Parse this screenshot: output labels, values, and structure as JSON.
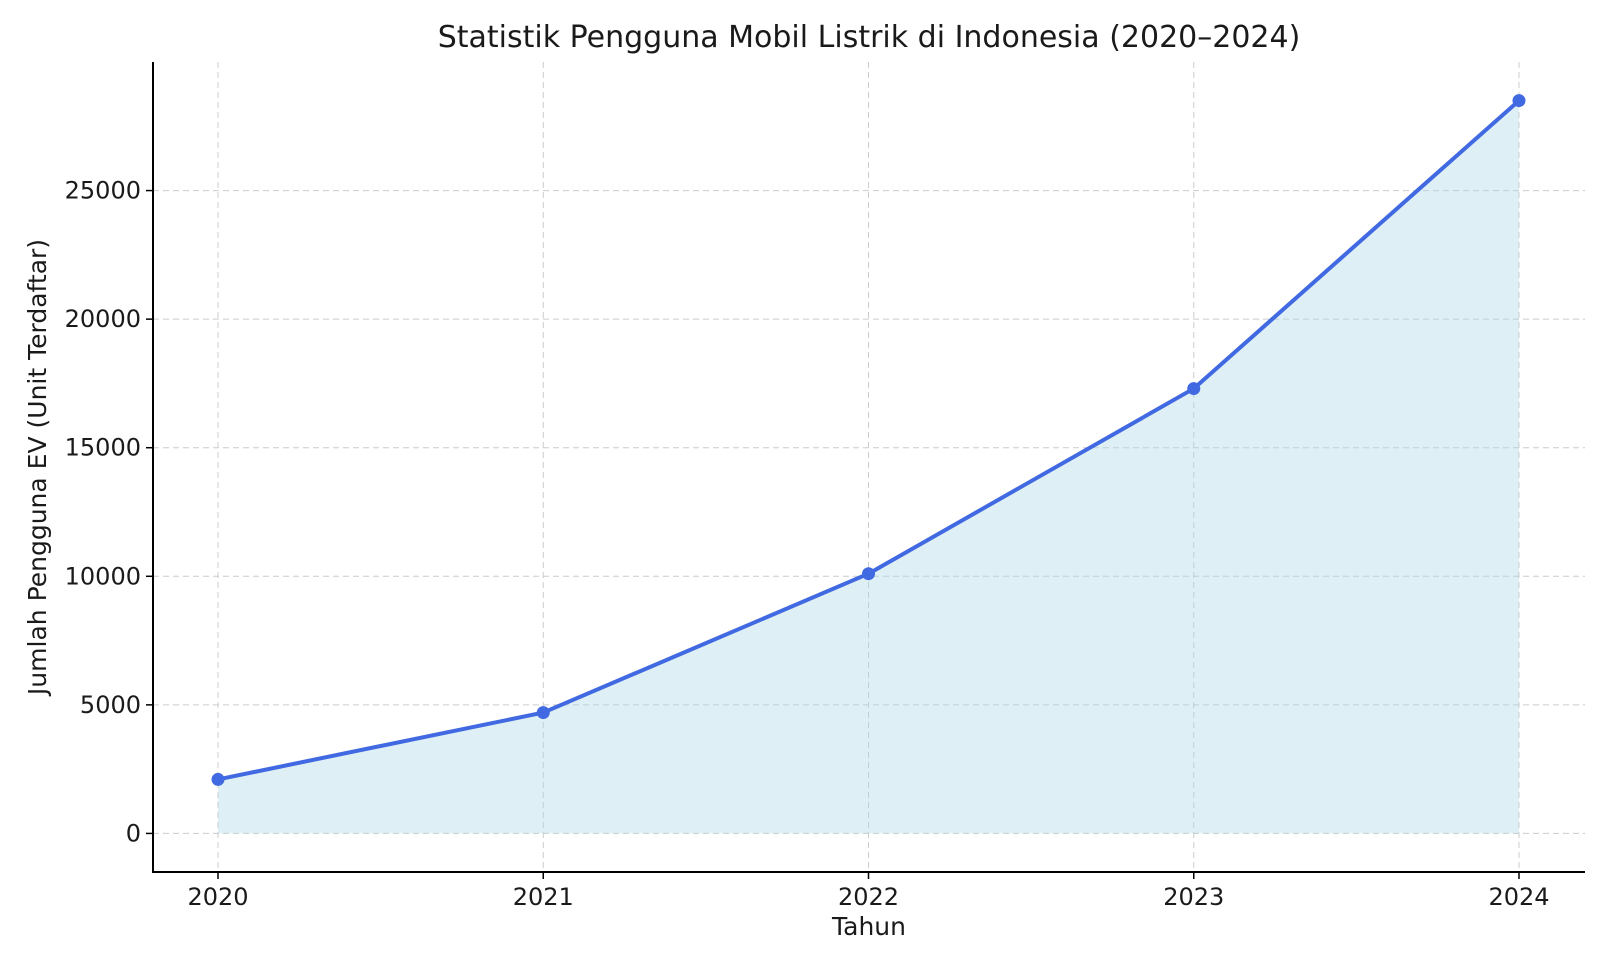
{
  "chart_data": {
    "type": "line",
    "title": "Statistik Pengguna Mobil Listrik di Indonesia (2020–2024)",
    "xlabel": "Tahun",
    "ylabel": "Jumlah Pengguna EV (Unit Terdaftar)",
    "x": [
      "2020",
      "2021",
      "2022",
      "2023",
      "2024"
    ],
    "series": [
      {
        "values": [
          2100,
          4700,
          10100,
          17300,
          28500
        ],
        "color": "#4169e1",
        "fill_color": "#add8e6",
        "fill": true,
        "markers": true
      }
    ],
    "ylim": [
      -1500,
      30000
    ],
    "yticks": [
      0,
      5000,
      10000,
      15000,
      20000,
      25000
    ],
    "yticks_labels": [
      "0",
      "5000",
      "10000",
      "15000",
      "20000",
      "25000"
    ],
    "grid": true,
    "legend": "none"
  }
}
